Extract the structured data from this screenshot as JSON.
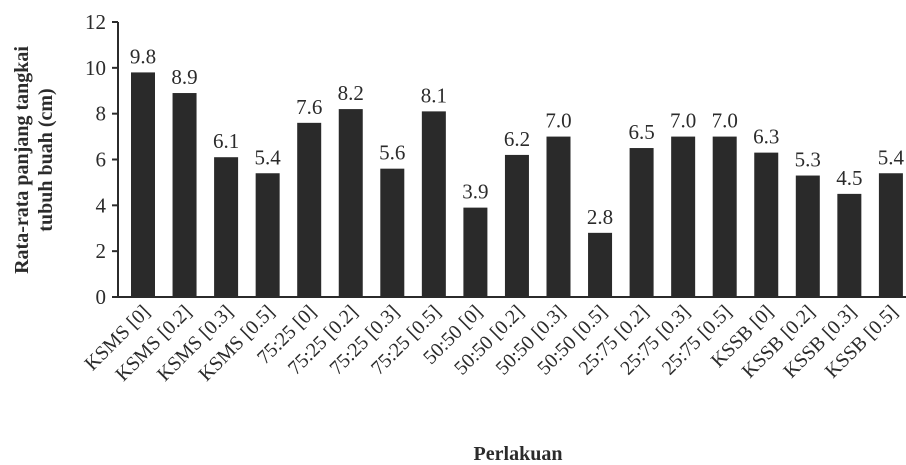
{
  "chart_data": {
    "type": "bar",
    "title": "",
    "xlabel": "Perlakuan",
    "ylabel_lines": [
      "Rata-rata panjang tangkai",
      "tubuh buah (cm)"
    ],
    "ylim": [
      0,
      12
    ],
    "yticks": [
      "0",
      "2",
      "4",
      "6",
      "8",
      "10",
      "12"
    ],
    "grid": false,
    "legend": "none",
    "bar_color": "#2a2a2a",
    "categories": [
      "KSMS [0]",
      "KSMS [0.2]",
      "KSMS [0.3]",
      "KSMS [0.5]",
      "75:25 [0]",
      "75:25 [0.2]",
      "75:25 [0.3]",
      "75:25 [0.5]",
      "50:50 [0]",
      "50:50 [0.2]",
      "50:50 [0.3]",
      "50:50 [0.5]",
      "25:75 [0.2]",
      "25:75 [0.3]",
      "25:75 [0.5]",
      "KSSB [0]",
      "KSSB [0.2]",
      "KSSB [0.3]",
      "KSSB [0.5]"
    ],
    "values": [
      9.8,
      8.9,
      6.1,
      5.4,
      7.6,
      8.2,
      5.6,
      8.1,
      3.9,
      6.2,
      7.0,
      2.8,
      6.5,
      7.0,
      7.0,
      6.3,
      5.3,
      4.5,
      5.4
    ],
    "value_labels": [
      "9.8",
      "8.9",
      "6.1",
      "5.4",
      "7.6",
      "8.2",
      "5.6",
      "8.1",
      "3.9",
      "6.2",
      "7.0",
      "2.8",
      "6.5",
      "7.0",
      "7.0",
      "6.3",
      "5.3",
      "4.5",
      "5.4"
    ]
  }
}
